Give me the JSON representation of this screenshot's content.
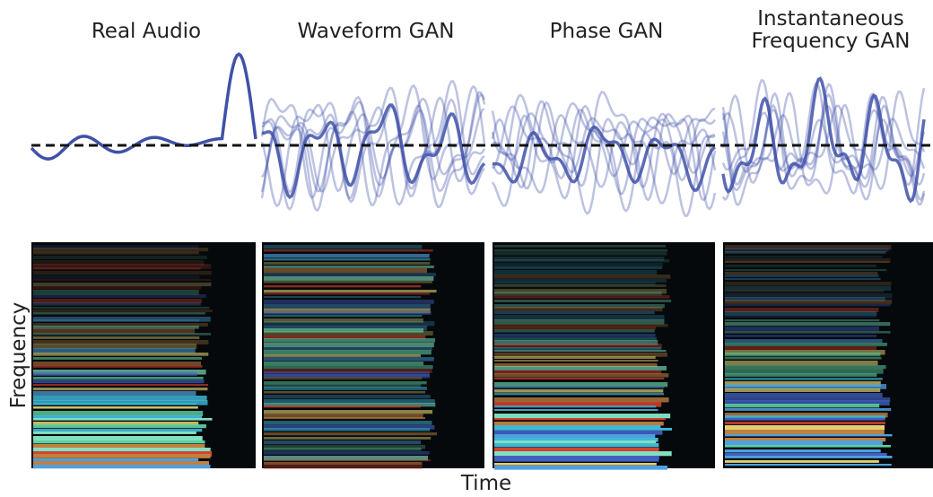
{
  "panels": [
    {
      "title": [
        "Real Audio"
      ]
    },
    {
      "title": [
        "Waveform GAN"
      ]
    },
    {
      "title": [
        "Phase GAN"
      ]
    },
    {
      "title": [
        "Instantaneous",
        "Frequency GAN"
      ]
    }
  ],
  "axes": {
    "y_label": "Frequency",
    "x_label": "Time"
  }
}
